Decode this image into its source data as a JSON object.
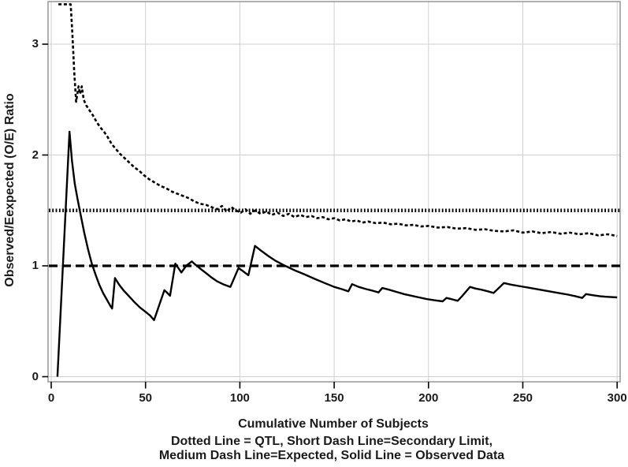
{
  "chart_data": {
    "type": "line",
    "title": "",
    "xlabel": "Cumulative Number of Subjects",
    "ylabel": "Observed/Eexpected (O/E) Ratio",
    "footnotes": [
      "Dotted Line = QTL, Short Dash Line=Secondary Limit,",
      "Medium Dash Line=Expected, Solid Line = Observed Data"
    ],
    "xlim": [
      0,
      300
    ],
    "ylim": [
      0,
      3.39
    ],
    "xticks": [
      0,
      50,
      100,
      150,
      200,
      250,
      300
    ],
    "yticks": [
      0,
      1,
      2,
      3
    ],
    "grid": true,
    "frame": true,
    "legend_position": "footnote-text-below-x-axis",
    "colors": {
      "line": "#000000",
      "grid": "#cfcfcf",
      "frame": "#8f8f8f",
      "text": "#1a1a1a",
      "background": "#ffffff"
    },
    "series": [
      {
        "name": "QTL",
        "pattern": "dotted",
        "span_frame": true,
        "value": 1.5,
        "points": [
          [
            0,
            1.5
          ],
          [
            300,
            1.5
          ]
        ]
      },
      {
        "name": "Expected",
        "pattern": "medium-dash",
        "span_frame": true,
        "value": 1.0,
        "points": [
          [
            0,
            1.0
          ],
          [
            300,
            1.0
          ]
        ]
      },
      {
        "name": "Secondary Limit",
        "pattern": "short-dash",
        "span_frame": false,
        "points": [
          [
            3.8,
            3.36
          ],
          [
            10.3,
            3.36
          ],
          [
            11.2,
            3.1
          ],
          [
            12.2,
            2.75
          ],
          [
            13.2,
            2.48
          ],
          [
            14.5,
            2.62
          ],
          [
            15.3,
            2.55
          ],
          [
            16.2,
            2.62
          ],
          [
            17.2,
            2.5
          ],
          [
            18.5,
            2.45
          ],
          [
            20,
            2.41
          ],
          [
            22,
            2.36
          ],
          [
            24,
            2.3
          ],
          [
            26,
            2.25
          ],
          [
            28,
            2.21
          ],
          [
            30,
            2.16
          ],
          [
            32,
            2.1
          ],
          [
            34,
            2.06
          ],
          [
            36.5,
            2.01
          ],
          [
            39,
            1.97
          ],
          [
            41.5,
            1.93
          ],
          [
            44,
            1.89
          ],
          [
            46.5,
            1.86
          ],
          [
            49,
            1.82
          ],
          [
            52,
            1.78
          ],
          [
            55,
            1.75
          ],
          [
            58,
            1.72
          ],
          [
            61,
            1.7
          ],
          [
            64,
            1.67
          ],
          [
            67,
            1.65
          ],
          [
            70,
            1.63
          ],
          [
            73,
            1.61
          ],
          [
            76,
            1.58
          ],
          [
            79,
            1.56
          ],
          [
            82,
            1.55
          ],
          [
            85,
            1.53
          ],
          [
            88,
            1.51
          ],
          [
            90.5,
            1.54
          ],
          [
            93,
            1.49
          ],
          [
            95.5,
            1.53
          ],
          [
            98,
            1.5
          ],
          [
            100.5,
            1.48
          ],
          [
            103,
            1.51
          ],
          [
            105.5,
            1.47
          ],
          [
            108,
            1.5
          ],
          [
            111,
            1.47
          ],
          [
            114,
            1.49
          ],
          [
            117,
            1.46
          ],
          [
            120,
            1.48
          ],
          [
            123,
            1.45
          ],
          [
            126,
            1.47
          ],
          [
            129,
            1.44
          ],
          [
            132,
            1.46
          ],
          [
            135,
            1.44
          ],
          [
            138,
            1.45
          ],
          [
            141,
            1.43
          ],
          [
            144,
            1.44
          ],
          [
            147,
            1.42
          ],
          [
            150,
            1.43
          ],
          [
            153,
            1.41
          ],
          [
            156,
            1.42
          ],
          [
            159,
            1.4
          ],
          [
            162,
            1.41
          ],
          [
            165,
            1.39
          ],
          [
            168,
            1.4
          ],
          [
            172,
            1.385
          ],
          [
            176,
            1.39
          ],
          [
            180,
            1.375
          ],
          [
            184,
            1.38
          ],
          [
            188,
            1.365
          ],
          [
            192,
            1.37
          ],
          [
            196,
            1.355
          ],
          [
            200,
            1.36
          ],
          [
            205,
            1.345
          ],
          [
            210,
            1.35
          ],
          [
            215,
            1.335
          ],
          [
            220,
            1.34
          ],
          [
            225,
            1.325
          ],
          [
            230,
            1.33
          ],
          [
            235,
            1.315
          ],
          [
            240,
            1.31
          ],
          [
            245,
            1.32
          ],
          [
            250,
            1.3
          ],
          [
            255,
            1.31
          ],
          [
            260,
            1.295
          ],
          [
            265,
            1.305
          ],
          [
            270,
            1.29
          ],
          [
            275,
            1.3
          ],
          [
            280,
            1.285
          ],
          [
            285,
            1.295
          ],
          [
            290,
            1.275
          ],
          [
            295,
            1.285
          ],
          [
            300,
            1.27
          ]
        ]
      },
      {
        "name": "Observed Data",
        "pattern": "solid",
        "span_frame": false,
        "points": [
          [
            3.3,
            0
          ],
          [
            9.7,
            2.21
          ],
          [
            11,
            1.95
          ],
          [
            12.5,
            1.74
          ],
          [
            14,
            1.6
          ],
          [
            15.5,
            1.47
          ],
          [
            17.5,
            1.3
          ],
          [
            19.5,
            1.15
          ],
          [
            21.5,
            1.02
          ],
          [
            23.5,
            0.92
          ],
          [
            25.5,
            0.83
          ],
          [
            27.5,
            0.755
          ],
          [
            29.5,
            0.695
          ],
          [
            31.5,
            0.635
          ],
          [
            32.3,
            0.615
          ],
          [
            33.8,
            0.89
          ],
          [
            36,
            0.83
          ],
          [
            38.5,
            0.775
          ],
          [
            41,
            0.73
          ],
          [
            44,
            0.675
          ],
          [
            47,
            0.625
          ],
          [
            50,
            0.585
          ],
          [
            52.5,
            0.55
          ],
          [
            54.5,
            0.51
          ],
          [
            60,
            0.78
          ],
          [
            61,
            0.765
          ],
          [
            63,
            0.73
          ],
          [
            65.8,
            1.02
          ],
          [
            67,
            0.99
          ],
          [
            69,
            0.94
          ],
          [
            71.5,
            1.0
          ],
          [
            74.5,
            1.04
          ],
          [
            76.5,
            1.01
          ],
          [
            79,
            0.975
          ],
          [
            82,
            0.935
          ],
          [
            85,
            0.895
          ],
          [
            88,
            0.86
          ],
          [
            91,
            0.835
          ],
          [
            95,
            0.81
          ],
          [
            99.3,
            0.98
          ],
          [
            101,
            0.96
          ],
          [
            104.5,
            0.915
          ],
          [
            108,
            1.18
          ],
          [
            111,
            1.14
          ],
          [
            115,
            1.09
          ],
          [
            119,
            1.045
          ],
          [
            124,
            1.0
          ],
          [
            129,
            0.96
          ],
          [
            134,
            0.925
          ],
          [
            140,
            0.88
          ],
          [
            145,
            0.845
          ],
          [
            150,
            0.81
          ],
          [
            154,
            0.79
          ],
          [
            157.5,
            0.77
          ],
          [
            159.5,
            0.835
          ],
          [
            163,
            0.81
          ],
          [
            167,
            0.79
          ],
          [
            170.5,
            0.775
          ],
          [
            173.5,
            0.76
          ],
          [
            175.5,
            0.8
          ],
          [
            179,
            0.785
          ],
          [
            183,
            0.765
          ],
          [
            187,
            0.745
          ],
          [
            191,
            0.73
          ],
          [
            195,
            0.715
          ],
          [
            199,
            0.7
          ],
          [
            203,
            0.69
          ],
          [
            207.5,
            0.68
          ],
          [
            209.5,
            0.71
          ],
          [
            212,
            0.7
          ],
          [
            215.5,
            0.685
          ],
          [
            218,
            0.73
          ],
          [
            222,
            0.81
          ],
          [
            225,
            0.795
          ],
          [
            228,
            0.785
          ],
          [
            231.5,
            0.77
          ],
          [
            234.5,
            0.755
          ],
          [
            240,
            0.845
          ],
          [
            244,
            0.83
          ],
          [
            249,
            0.815
          ],
          [
            254,
            0.8
          ],
          [
            259,
            0.785
          ],
          [
            264,
            0.77
          ],
          [
            269,
            0.755
          ],
          [
            274,
            0.74
          ],
          [
            278,
            0.725
          ],
          [
            281.5,
            0.71
          ],
          [
            283.5,
            0.745
          ],
          [
            287,
            0.735
          ],
          [
            291,
            0.725
          ],
          [
            295,
            0.72
          ],
          [
            300,
            0.715
          ]
        ]
      }
    ]
  }
}
